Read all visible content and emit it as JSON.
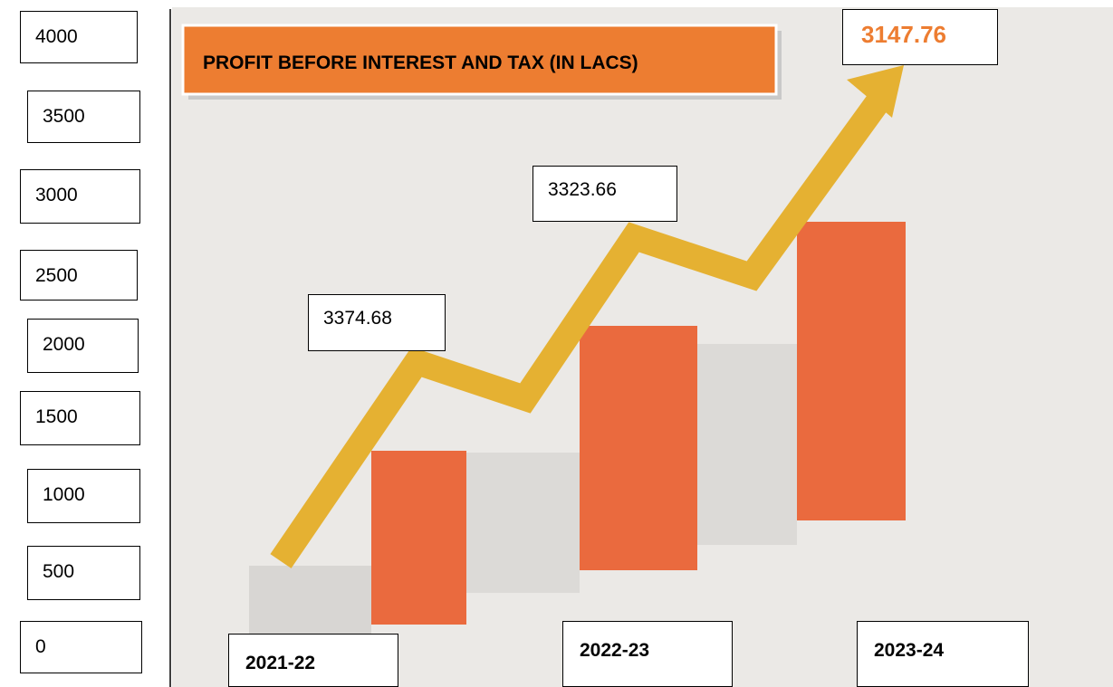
{
  "title": "PROFIT BEFORE INTEREST AND TAX (IN LACS)",
  "scale_labels": [
    4000,
    3500,
    3000,
    2500,
    2000,
    1500,
    1000,
    500,
    0
  ],
  "value_labels": [
    3374.68,
    3323.66,
    3147.76
  ],
  "years": [
    "2021-22",
    "2022-23",
    "2023-24"
  ]
}
